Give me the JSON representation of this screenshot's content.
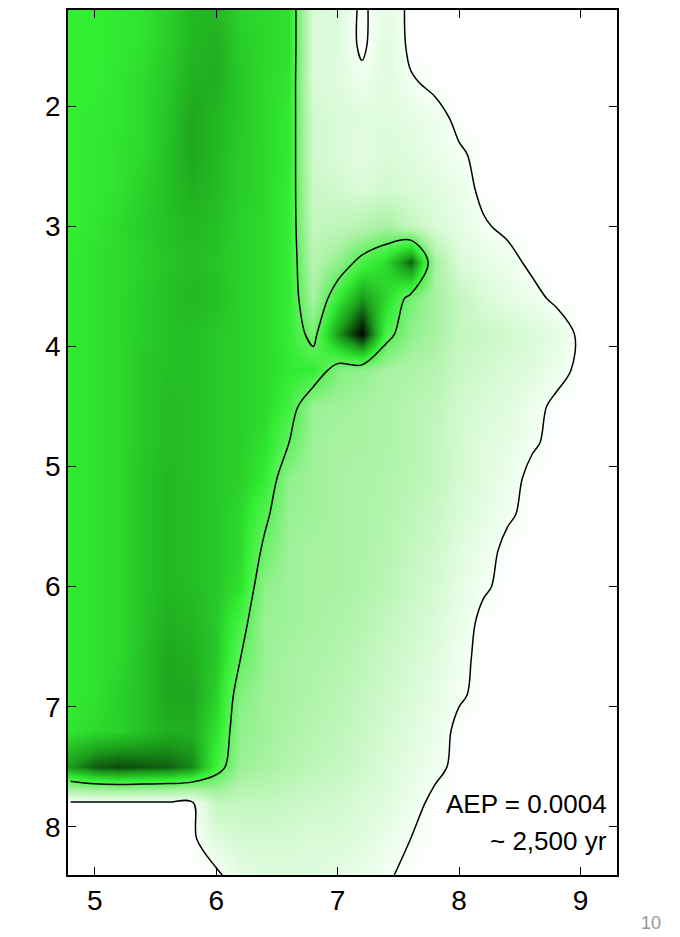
{
  "chart_data": {
    "type": "heatmap",
    "annotations": [
      "AEP = 0.0004",
      "~ 2,500 yr"
    ],
    "page_label": "10",
    "xlim": [
      4.78,
      9.3
    ],
    "ylim": [
      8.4,
      1.2
    ],
    "xticks": [
      5,
      6,
      7,
      8,
      9
    ],
    "yticks": [
      2,
      3,
      4,
      5,
      6,
      7,
      8
    ],
    "grid": false,
    "zlim": [
      0,
      1
    ],
    "contour_levels": [
      0.02,
      0.45
    ],
    "x": [
      4.8,
      5.0,
      5.2,
      5.4,
      5.6,
      5.8,
      6.0,
      6.2,
      6.4,
      6.6,
      6.8,
      7.0,
      7.2,
      7.4,
      7.6,
      7.8,
      8.0,
      8.2,
      8.4,
      8.6,
      8.8,
      9.0,
      9.2
    ],
    "y": [
      1.2,
      1.5,
      1.8,
      2.1,
      2.4,
      2.7,
      3.0,
      3.3,
      3.6,
      3.9,
      4.2,
      4.5,
      4.8,
      5.1,
      5.4,
      5.7,
      6.0,
      6.3,
      6.6,
      6.9,
      7.2,
      7.5,
      7.8,
      8.1,
      8.4
    ],
    "z": [
      [
        0.55,
        0.55,
        0.56,
        0.58,
        0.62,
        0.68,
        0.68,
        0.62,
        0.6,
        0.58,
        0.12,
        0.1,
        0,
        0.08,
        0,
        0,
        0,
        0,
        0,
        0,
        0,
        0,
        0
      ],
      [
        0.55,
        0.55,
        0.56,
        0.58,
        0.63,
        0.68,
        0.7,
        0.63,
        0.6,
        0.58,
        0.12,
        0.1,
        0,
        0.1,
        0,
        0,
        0,
        0,
        0,
        0,
        0,
        0,
        0
      ],
      [
        0.55,
        0.55,
        0.57,
        0.6,
        0.64,
        0.7,
        0.7,
        0.64,
        0.6,
        0.57,
        0.12,
        0.1,
        0.05,
        0.1,
        0.03,
        0,
        0,
        0,
        0,
        0,
        0,
        0,
        0
      ],
      [
        0.55,
        0.56,
        0.57,
        0.6,
        0.65,
        0.72,
        0.68,
        0.64,
        0.6,
        0.56,
        0.15,
        0.12,
        0.1,
        0.1,
        0.08,
        0.05,
        0,
        0,
        0,
        0,
        0,
        0,
        0
      ],
      [
        0.55,
        0.56,
        0.58,
        0.6,
        0.66,
        0.72,
        0.68,
        0.63,
        0.6,
        0.56,
        0.15,
        0.12,
        0.08,
        0.12,
        0.1,
        0.06,
        0.03,
        0,
        0,
        0,
        0,
        0,
        0
      ],
      [
        0.55,
        0.56,
        0.58,
        0.62,
        0.66,
        0.7,
        0.67,
        0.63,
        0.6,
        0.55,
        0.18,
        0.15,
        0.12,
        0.15,
        0.12,
        0.1,
        0.06,
        0,
        0,
        0,
        0,
        0,
        0
      ],
      [
        0.55,
        0.57,
        0.6,
        0.63,
        0.66,
        0.68,
        0.66,
        0.62,
        0.6,
        0.55,
        0.2,
        0.22,
        0.25,
        0.3,
        0.2,
        0.12,
        0.08,
        0.03,
        0,
        0,
        0,
        0,
        0
      ],
      [
        0.56,
        0.58,
        0.6,
        0.62,
        0.65,
        0.67,
        0.65,
        0.62,
        0.6,
        0.55,
        0.25,
        0.35,
        0.5,
        0.6,
        0.85,
        0.3,
        0.12,
        0.08,
        0.05,
        0,
        0,
        0,
        0
      ],
      [
        0.56,
        0.58,
        0.6,
        0.63,
        0.66,
        0.68,
        0.66,
        0.62,
        0.6,
        0.55,
        0.3,
        0.55,
        0.75,
        0.6,
        0.4,
        0.3,
        0.2,
        0.12,
        0.08,
        0.05,
        0,
        0,
        0
      ],
      [
        0.56,
        0.58,
        0.6,
        0.63,
        0.66,
        0.66,
        0.64,
        0.62,
        0.6,
        0.55,
        0.4,
        0.75,
        1.0,
        0.5,
        0.35,
        0.3,
        0.2,
        0.18,
        0.15,
        0.12,
        0.08,
        0,
        0
      ],
      [
        0.56,
        0.58,
        0.6,
        0.64,
        0.66,
        0.66,
        0.64,
        0.62,
        0.6,
        0.56,
        0.55,
        0.38,
        0.35,
        0.3,
        0.28,
        0.25,
        0.18,
        0.15,
        0.12,
        0.1,
        0.05,
        0,
        0
      ],
      [
        0.56,
        0.58,
        0.6,
        0.64,
        0.67,
        0.66,
        0.64,
        0.62,
        0.6,
        0.52,
        0.33,
        0.32,
        0.3,
        0.28,
        0.25,
        0.22,
        0.15,
        0.12,
        0.1,
        0.05,
        0,
        0,
        0
      ],
      [
        0.56,
        0.58,
        0.6,
        0.64,
        0.67,
        0.66,
        0.64,
        0.62,
        0.58,
        0.45,
        0.32,
        0.3,
        0.3,
        0.28,
        0.25,
        0.2,
        0.15,
        0.1,
        0.08,
        0.03,
        0,
        0,
        0
      ],
      [
        0.56,
        0.58,
        0.6,
        0.65,
        0.68,
        0.66,
        0.64,
        0.62,
        0.55,
        0.35,
        0.32,
        0.3,
        0.28,
        0.27,
        0.24,
        0.2,
        0.14,
        0.1,
        0.05,
        0,
        0,
        0,
        0
      ],
      [
        0.56,
        0.58,
        0.6,
        0.65,
        0.68,
        0.66,
        0.64,
        0.6,
        0.48,
        0.33,
        0.32,
        0.3,
        0.28,
        0.26,
        0.22,
        0.18,
        0.12,
        0.08,
        0.03,
        0,
        0,
        0,
        0
      ],
      [
        0.56,
        0.58,
        0.6,
        0.65,
        0.68,
        0.66,
        0.64,
        0.6,
        0.42,
        0.32,
        0.3,
        0.3,
        0.28,
        0.25,
        0.2,
        0.16,
        0.1,
        0.05,
        0,
        0,
        0,
        0,
        0
      ],
      [
        0.56,
        0.58,
        0.6,
        0.65,
        0.68,
        0.67,
        0.64,
        0.58,
        0.35,
        0.32,
        0.3,
        0.3,
        0.27,
        0.24,
        0.18,
        0.14,
        0.08,
        0.03,
        0,
        0,
        0,
        0,
        0
      ],
      [
        0.56,
        0.58,
        0.6,
        0.65,
        0.7,
        0.68,
        0.64,
        0.5,
        0.33,
        0.32,
        0.3,
        0.28,
        0.25,
        0.2,
        0.16,
        0.12,
        0.06,
        0,
        0,
        0,
        0,
        0,
        0
      ],
      [
        0.56,
        0.58,
        0.6,
        0.66,
        0.72,
        0.7,
        0.64,
        0.45,
        0.33,
        0.3,
        0.28,
        0.26,
        0.22,
        0.18,
        0.14,
        0.1,
        0.04,
        0,
        0,
        0,
        0,
        0,
        0
      ],
      [
        0.56,
        0.58,
        0.62,
        0.66,
        0.72,
        0.72,
        0.62,
        0.38,
        0.32,
        0.3,
        0.27,
        0.24,
        0.2,
        0.16,
        0.12,
        0.08,
        0.03,
        0,
        0,
        0,
        0,
        0,
        0
      ],
      [
        0.57,
        0.6,
        0.62,
        0.66,
        0.7,
        0.7,
        0.58,
        0.35,
        0.32,
        0.28,
        0.25,
        0.22,
        0.18,
        0.14,
        0.1,
        0.06,
        0,
        0,
        0,
        0,
        0,
        0,
        0
      ],
      [
        0.75,
        0.85,
        0.88,
        0.86,
        0.84,
        0.78,
        0.52,
        0.33,
        0.3,
        0.26,
        0.22,
        0.2,
        0.16,
        0.12,
        0.08,
        0.04,
        0,
        0,
        0,
        0,
        0,
        0,
        0
      ],
      [
        0,
        0,
        0,
        0,
        0,
        0,
        0.2,
        0.2,
        0.2,
        0.18,
        0.16,
        0.15,
        0.12,
        0.1,
        0.05,
        0,
        0,
        0,
        0,
        0,
        0,
        0,
        0
      ],
      [
        0,
        0,
        0,
        0,
        0,
        0,
        0.1,
        0.14,
        0.14,
        0.14,
        0.12,
        0.12,
        0.1,
        0.06,
        0.02,
        0,
        0,
        0,
        0,
        0,
        0,
        0,
        0
      ],
      [
        0,
        0,
        0,
        0,
        0,
        0,
        0,
        0.08,
        0.1,
        0.1,
        0.1,
        0.08,
        0.06,
        0.03,
        0,
        0,
        0,
        0,
        0,
        0,
        0,
        0,
        0
      ]
    ]
  }
}
